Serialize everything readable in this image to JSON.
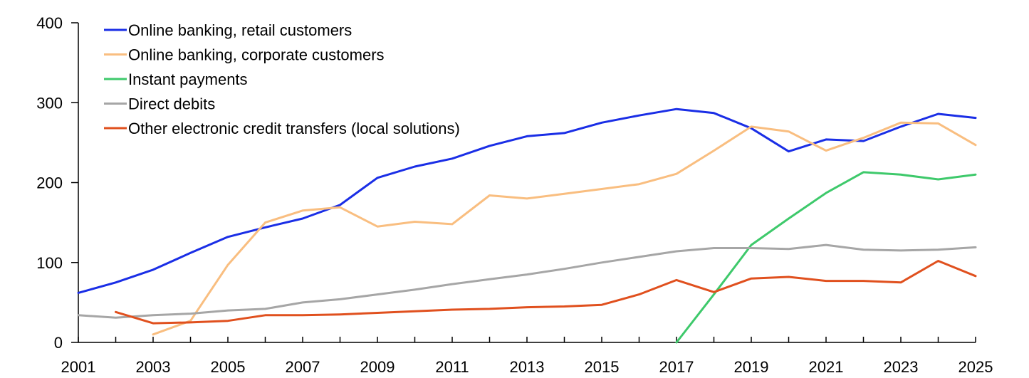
{
  "chart_data": {
    "type": "line",
    "title": "",
    "xlabel": "",
    "ylabel": "",
    "xlim": [
      2001,
      2025
    ],
    "ylim": [
      0,
      400
    ],
    "y_ticks": [
      0,
      100,
      200,
      300,
      400
    ],
    "x_ticks": [
      2001,
      2003,
      2005,
      2007,
      2009,
      2011,
      2013,
      2015,
      2017,
      2019,
      2021,
      2023,
      2025
    ],
    "grid": false,
    "legend_position": "top-left",
    "series": [
      {
        "name": "Online banking, retail customers",
        "color": "#1a2ee6",
        "x": [
          2001,
          2002,
          2003,
          2004,
          2005,
          2006,
          2007,
          2008,
          2009,
          2010,
          2011,
          2012,
          2013,
          2014,
          2015,
          2016,
          2017,
          2018,
          2019,
          2020,
          2021,
          2022,
          2023,
          2024,
          2025
        ],
        "y": [
          62,
          75,
          91,
          112,
          132,
          144,
          155,
          172,
          206,
          220,
          230,
          246,
          258,
          262,
          275,
          284,
          292,
          287,
          268,
          239,
          254,
          252,
          270,
          286,
          281
        ]
      },
      {
        "name": "Online banking, corporate customers",
        "color": "#f9be80",
        "x": [
          2003,
          2004,
          2005,
          2006,
          2007,
          2008,
          2009,
          2010,
          2011,
          2012,
          2013,
          2014,
          2015,
          2016,
          2017,
          2018,
          2019,
          2020,
          2021,
          2022,
          2023,
          2024,
          2025
        ],
        "y": [
          10,
          27,
          97,
          150,
          165,
          169,
          145,
          151,
          148,
          184,
          180,
          186,
          192,
          198,
          211,
          240,
          270,
          264,
          240,
          256,
          275,
          274,
          247
        ]
      },
      {
        "name": "Instant payments",
        "color": "#3ec96b",
        "x": [
          2017,
          2018,
          2019,
          2020,
          2021,
          2022,
          2023,
          2024,
          2025
        ],
        "y": [
          0,
          60,
          122,
          155,
          187,
          213,
          210,
          204,
          210
        ]
      },
      {
        "name": "Direct debits",
        "color": "#a6a6a6",
        "x": [
          2001,
          2002,
          2003,
          2004,
          2005,
          2006,
          2007,
          2008,
          2009,
          2010,
          2011,
          2012,
          2013,
          2014,
          2015,
          2016,
          2017,
          2018,
          2019,
          2020,
          2021,
          2022,
          2023,
          2024,
          2025
        ],
        "y": [
          34,
          31,
          34,
          36,
          40,
          42,
          50,
          54,
          60,
          66,
          73,
          79,
          85,
          92,
          100,
          107,
          114,
          118,
          118,
          117,
          122,
          116,
          115,
          116,
          119
        ]
      },
      {
        "name": "Other electronic credit transfers (local solutions)",
        "color": "#e0501e",
        "x": [
          2002,
          2003,
          2004,
          2005,
          2006,
          2007,
          2008,
          2009,
          2010,
          2011,
          2012,
          2013,
          2014,
          2015,
          2016,
          2017,
          2018,
          2019,
          2020,
          2021,
          2022,
          2023,
          2024,
          2025
        ],
        "y": [
          38,
          24,
          25,
          27,
          34,
          34,
          35,
          37,
          39,
          41,
          42,
          44,
          45,
          47,
          60,
          78,
          63,
          80,
          82,
          77,
          77,
          75,
          102,
          83
        ]
      }
    ]
  }
}
